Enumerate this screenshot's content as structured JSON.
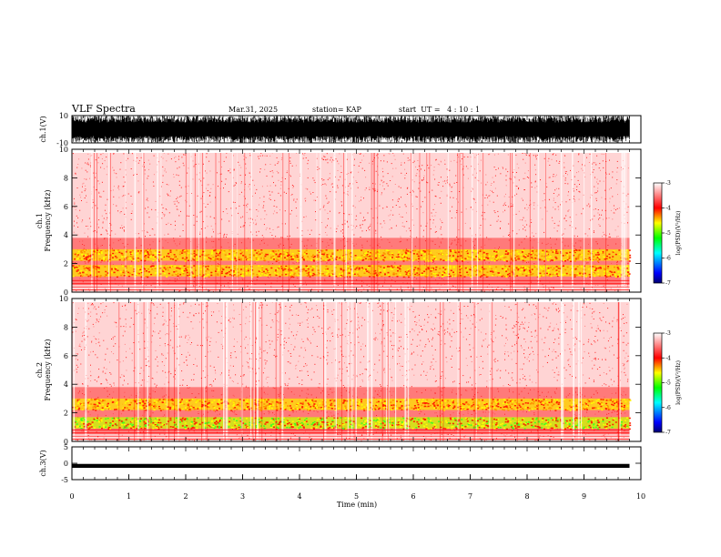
{
  "header": {
    "title": "VLF Spectra",
    "date": "Mar.31, 2025",
    "station": "station= KAP",
    "start_ut": "start  UT =   4 : 10 : 1"
  },
  "chart_data": [
    {
      "type": "line",
      "panel": "ch1-waveform",
      "ylabel": "ch.1(V)",
      "ylim": [
        -10,
        10
      ],
      "yticks": [
        "10",
        "-10"
      ],
      "xlim": [
        0,
        10
      ],
      "data_end_min": 9.8,
      "style": "dense saturated waveform filling most of the range"
    },
    {
      "type": "heatmap",
      "panel": "ch1-spectrogram",
      "ylabel": "ch.1\nFrequency  (kHz)",
      "ylabel_line1": "ch.1",
      "ylabel_line2": "Frequency  (kHz)",
      "ylim": [
        0,
        10
      ],
      "yticks": [
        "0",
        "2",
        "4",
        "6",
        "8",
        "10"
      ],
      "xlim": [
        0,
        10
      ],
      "data_end_min": 9.8,
      "bands": [
        {
          "from_khz": 1.1,
          "to_khz": 1.9,
          "level": "yellow"
        },
        {
          "from_khz": 2.2,
          "to_khz": 3.0,
          "level": "yellow"
        }
      ],
      "background_level": "light-red",
      "colorbar": {
        "label": "log(PSD)(V²/Hz)",
        "ticks": [
          "-3",
          "-4",
          "-5",
          "-6",
          "-7"
        ],
        "range": [
          -7,
          -3
        ]
      }
    },
    {
      "type": "heatmap",
      "panel": "ch2-spectrogram",
      "ylabel_line1": "ch.2",
      "ylabel_line2": "Frequency  (kHz)",
      "ylim": [
        0,
        10
      ],
      "yticks": [
        "0",
        "2",
        "4",
        "6",
        "8",
        "10"
      ],
      "xlim": [
        0,
        10
      ],
      "data_end_min": 9.8,
      "bands": [
        {
          "from_khz": 0.9,
          "to_khz": 1.7,
          "level": "green-yellow"
        },
        {
          "from_khz": 2.2,
          "to_khz": 3.0,
          "level": "yellow"
        }
      ],
      "background_level": "light-red",
      "colorbar": {
        "label": "log(PSD)(V²/Hz)",
        "ticks": [
          "-3",
          "-4",
          "-5",
          "-6",
          "-7"
        ],
        "range": [
          -7,
          -3
        ]
      }
    },
    {
      "type": "line",
      "panel": "ch3-waveform",
      "ylabel": "ch.3(V)",
      "ylim": [
        -5,
        5
      ],
      "yticks": [
        "5",
        "0",
        "-5"
      ],
      "xlim": [
        0,
        10
      ],
      "data_end_min": 9.8,
      "level_v": -0.8,
      "xlabel": "Time  (min)",
      "xticks": [
        "0",
        "1",
        "2",
        "3",
        "4",
        "5",
        "6",
        "7",
        "8",
        "9",
        "10"
      ]
    }
  ],
  "colors": {
    "colormap": [
      "#ffffff",
      "#ff0000",
      "#ffff00",
      "#00ff00",
      "#00ffff",
      "#0000ff",
      "#000080"
    ],
    "waveform": "#000000",
    "axes": "#000000"
  }
}
